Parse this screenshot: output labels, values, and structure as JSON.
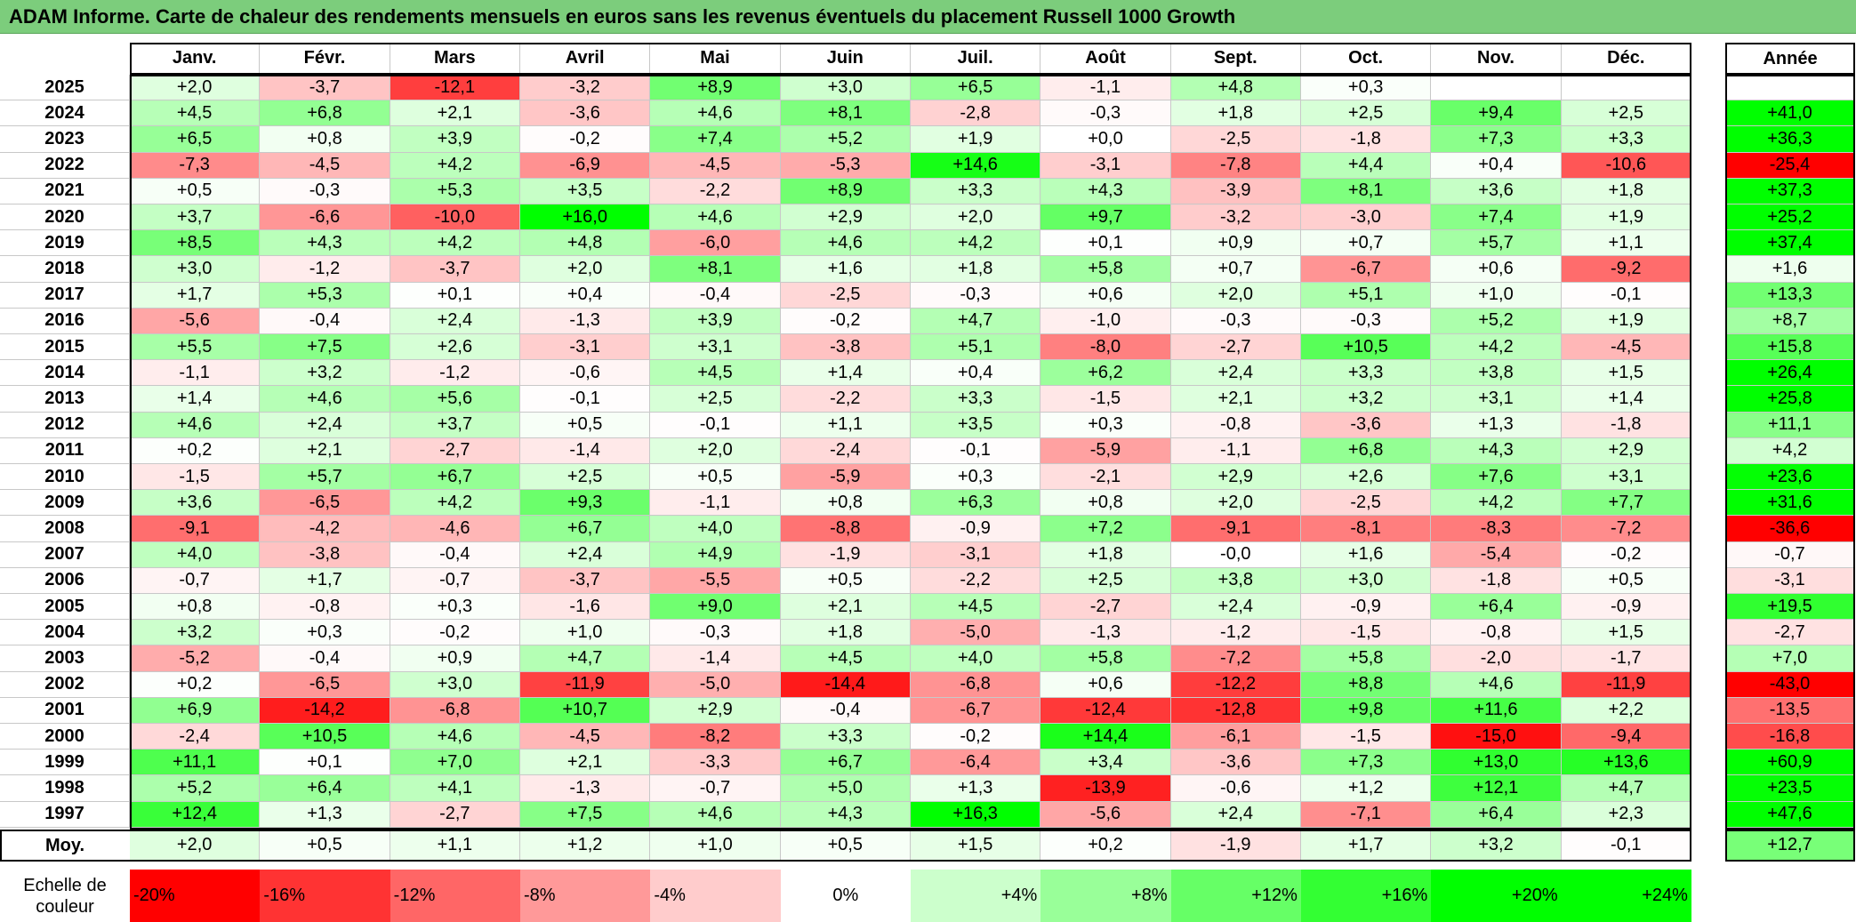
{
  "title": "ADAM Informe. Carte de chaleur des rendements mensuels en euros sans les revenus éventuels du placement Russell 1000 Growth",
  "colors": {
    "title_bg": "#7ccd7c",
    "max_green": "#00ff00",
    "max_red": "#ff0000",
    "neutral": "#ffffff"
  },
  "chart_data": {
    "type": "heatmap",
    "title": "ADAM Informe. Carte de chaleur des rendements mensuels en euros sans les revenus éventuels du placement Russell 1000 Growth",
    "columns": [
      "Janv.",
      "Févr.",
      "Mars",
      "Avril",
      "Mai",
      "Juin",
      "Juil.",
      "Août",
      "Sept.",
      "Oct.",
      "Nov.",
      "Déc."
    ],
    "year_header": "Année",
    "rows": [
      {
        "year": "2025",
        "months": [
          "+2,0",
          "-3,7",
          "-12,1",
          "-3,2",
          "+8,9",
          "+3,0",
          "+6,5",
          "-1,1",
          "+4,8",
          "+0,3",
          "",
          ""
        ],
        "annual": ""
      },
      {
        "year": "2024",
        "months": [
          "+4,5",
          "+6,8",
          "+2,1",
          "-3,6",
          "+4,6",
          "+8,1",
          "-2,8",
          "-0,3",
          "+1,8",
          "+2,5",
          "+9,4",
          "+2,5"
        ],
        "annual": "+41,0"
      },
      {
        "year": "2023",
        "months": [
          "+6,5",
          "+0,8",
          "+3,9",
          "-0,2",
          "+7,4",
          "+5,2",
          "+1,9",
          "+0,0",
          "-2,5",
          "-1,8",
          "+7,3",
          "+3,3"
        ],
        "annual": "+36,3"
      },
      {
        "year": "2022",
        "months": [
          "-7,3",
          "-4,5",
          "+4,2",
          "-6,9",
          "-4,5",
          "-5,3",
          "+14,6",
          "-3,1",
          "-7,8",
          "+4,4",
          "+0,4",
          "-10,6"
        ],
        "annual": "-25,4"
      },
      {
        "year": "2021",
        "months": [
          "+0,5",
          "-0,3",
          "+5,3",
          "+3,5",
          "-2,2",
          "+8,9",
          "+3,3",
          "+4,3",
          "-3,9",
          "+8,1",
          "+3,6",
          "+1,8"
        ],
        "annual": "+37,3"
      },
      {
        "year": "2020",
        "months": [
          "+3,7",
          "-6,6",
          "-10,0",
          "+16,0",
          "+4,6",
          "+2,9",
          "+2,0",
          "+9,7",
          "-3,2",
          "-3,0",
          "+7,4",
          "+1,9"
        ],
        "annual": "+25,2"
      },
      {
        "year": "2019",
        "months": [
          "+8,5",
          "+4,3",
          "+4,2",
          "+4,8",
          "-6,0",
          "+4,6",
          "+4,2",
          "+0,1",
          "+0,9",
          "+0,7",
          "+5,7",
          "+1,1"
        ],
        "annual": "+37,4"
      },
      {
        "year": "2018",
        "months": [
          "+3,0",
          "-1,2",
          "-3,7",
          "+2,0",
          "+8,1",
          "+1,6",
          "+1,8",
          "+5,8",
          "+0,7",
          "-6,7",
          "+0,6",
          "-9,2"
        ],
        "annual": "+1,6"
      },
      {
        "year": "2017",
        "months": [
          "+1,7",
          "+5,3",
          "+0,1",
          "+0,4",
          "-0,4",
          "-2,5",
          "-0,3",
          "+0,6",
          "+2,0",
          "+5,1",
          "+1,0",
          "-0,1"
        ],
        "annual": "+13,3"
      },
      {
        "year": "2016",
        "months": [
          "-5,6",
          "-0,4",
          "+2,4",
          "-1,3",
          "+3,9",
          "-0,2",
          "+4,7",
          "-1,0",
          "-0,3",
          "-0,3",
          "+5,2",
          "+1,9"
        ],
        "annual": "+8,7"
      },
      {
        "year": "2015",
        "months": [
          "+5,5",
          "+7,5",
          "+2,6",
          "-3,1",
          "+3,1",
          "-3,8",
          "+5,1",
          "-8,0",
          "-2,7",
          "+10,5",
          "+4,2",
          "-4,5"
        ],
        "annual": "+15,8"
      },
      {
        "year": "2014",
        "months": [
          "-1,1",
          "+3,2",
          "-1,2",
          "-0,6",
          "+4,5",
          "+1,4",
          "+0,4",
          "+6,2",
          "+2,4",
          "+3,3",
          "+3,8",
          "+1,5"
        ],
        "annual": "+26,4"
      },
      {
        "year": "2013",
        "months": [
          "+1,4",
          "+4,6",
          "+5,6",
          "-0,1",
          "+2,5",
          "-2,2",
          "+3,3",
          "-1,5",
          "+2,1",
          "+3,2",
          "+3,1",
          "+1,4"
        ],
        "annual": "+25,8"
      },
      {
        "year": "2012",
        "months": [
          "+4,6",
          "+2,4",
          "+3,7",
          "+0,5",
          "-0,1",
          "+1,1",
          "+3,5",
          "+0,3",
          "-0,8",
          "-3,6",
          "+1,3",
          "-1,8"
        ],
        "annual": "+11,1"
      },
      {
        "year": "2011",
        "months": [
          "+0,2",
          "+2,1",
          "-2,7",
          "-1,4",
          "+2,0",
          "-2,4",
          "-0,1",
          "-5,9",
          "-1,1",
          "+6,8",
          "+4,3",
          "+2,9"
        ],
        "annual": "+4,2"
      },
      {
        "year": "2010",
        "months": [
          "-1,5",
          "+5,7",
          "+6,7",
          "+2,5",
          "+0,5",
          "-5,9",
          "+0,3",
          "-2,1",
          "+2,9",
          "+2,6",
          "+7,6",
          "+3,1"
        ],
        "annual": "+23,6"
      },
      {
        "year": "2009",
        "months": [
          "+3,6",
          "-6,5",
          "+4,2",
          "+9,3",
          "-1,1",
          "+0,8",
          "+6,3",
          "+0,8",
          "+2,0",
          "-2,5",
          "+4,2",
          "+7,7"
        ],
        "annual": "+31,6"
      },
      {
        "year": "2008",
        "months": [
          "-9,1",
          "-4,2",
          "-4,6",
          "+6,7",
          "+4,0",
          "-8,8",
          "-0,9",
          "+7,2",
          "-9,1",
          "-8,1",
          "-8,3",
          "-7,2"
        ],
        "annual": "-36,6"
      },
      {
        "year": "2007",
        "months": [
          "+4,0",
          "-3,8",
          "-0,4",
          "+2,4",
          "+4,9",
          "-1,9",
          "-3,1",
          "+1,8",
          "-0,0",
          "+1,6",
          "-5,4",
          "-0,2"
        ],
        "annual": "-0,7"
      },
      {
        "year": "2006",
        "months": [
          "-0,7",
          "+1,7",
          "-0,7",
          "-3,7",
          "-5,5",
          "+0,5",
          "-2,2",
          "+2,5",
          "+3,8",
          "+3,0",
          "-1,8",
          "+0,5"
        ],
        "annual": "-3,1"
      },
      {
        "year": "2005",
        "months": [
          "+0,8",
          "-0,8",
          "+0,3",
          "-1,6",
          "+9,0",
          "+2,1",
          "+4,5",
          "-2,7",
          "+2,4",
          "-0,9",
          "+6,4",
          "-0,9"
        ],
        "annual": "+19,5"
      },
      {
        "year": "2004",
        "months": [
          "+3,2",
          "+0,3",
          "-0,2",
          "+1,0",
          "-0,3",
          "+1,8",
          "-5,0",
          "-1,3",
          "-1,2",
          "-1,5",
          "-0,8",
          "+1,5"
        ],
        "annual": "-2,7"
      },
      {
        "year": "2003",
        "months": [
          "-5,2",
          "-0,4",
          "+0,9",
          "+4,7",
          "-1,4",
          "+4,5",
          "+4,0",
          "+5,8",
          "-7,2",
          "+5,8",
          "-2,0",
          "-1,7"
        ],
        "annual": "+7,0"
      },
      {
        "year": "2002",
        "months": [
          "+0,2",
          "-6,5",
          "+3,0",
          "-11,9",
          "-5,0",
          "-14,4",
          "-6,8",
          "+0,6",
          "-12,2",
          "+8,8",
          "+4,6",
          "-11,9"
        ],
        "annual": "-43,0"
      },
      {
        "year": "2001",
        "months": [
          "+6,9",
          "-14,2",
          "-6,8",
          "+10,7",
          "+2,9",
          "-0,4",
          "-6,7",
          "-12,4",
          "-12,8",
          "+9,8",
          "+11,6",
          "+2,2"
        ],
        "annual": "-13,5"
      },
      {
        "year": "2000",
        "months": [
          "-2,4",
          "+10,5",
          "+4,6",
          "-4,5",
          "-8,2",
          "+3,3",
          "-0,2",
          "+14,4",
          "-6,1",
          "-1,5",
          "-15,0",
          "-9,4"
        ],
        "annual": "-16,8"
      },
      {
        "year": "1999",
        "months": [
          "+11,1",
          "+0,1",
          "+7,0",
          "+2,1",
          "-3,3",
          "+6,7",
          "-6,4",
          "+3,4",
          "-3,6",
          "+7,3",
          "+13,0",
          "+13,6"
        ],
        "annual": "+60,9"
      },
      {
        "year": "1998",
        "months": [
          "+5,2",
          "+6,4",
          "+4,1",
          "-1,3",
          "-0,7",
          "+5,0",
          "+1,3",
          "-13,9",
          "-0,6",
          "+1,2",
          "+12,1",
          "+4,7"
        ],
        "annual": "+23,5"
      },
      {
        "year": "1997",
        "months": [
          "+12,4",
          "+1,3",
          "-2,7",
          "+7,5",
          "+4,6",
          "+4,3",
          "+16,3",
          "-5,6",
          "+2,4",
          "-7,1",
          "+6,4",
          "+2,3"
        ],
        "annual": "+47,6"
      }
    ],
    "average": {
      "label": "Moy.",
      "months": [
        "+2,0",
        "+0,5",
        "+1,1",
        "+1,2",
        "+1,0",
        "+0,5",
        "+1,5",
        "+0,2",
        "-1,9",
        "+1,7",
        "+3,2",
        "-0,1"
      ],
      "annual": "+12,7"
    },
    "scale": {
      "label": "Echelle de couleur",
      "steps": [
        "-20%",
        "-16%",
        "-12%",
        "-8%",
        "-4%",
        "0%",
        "+4%",
        "+8%",
        "+12%",
        "+16%",
        "+20%",
        "+24%"
      ],
      "values": [
        -20,
        -16,
        -12,
        -8,
        -4,
        0,
        4,
        8,
        12,
        16,
        20,
        24
      ]
    }
  }
}
